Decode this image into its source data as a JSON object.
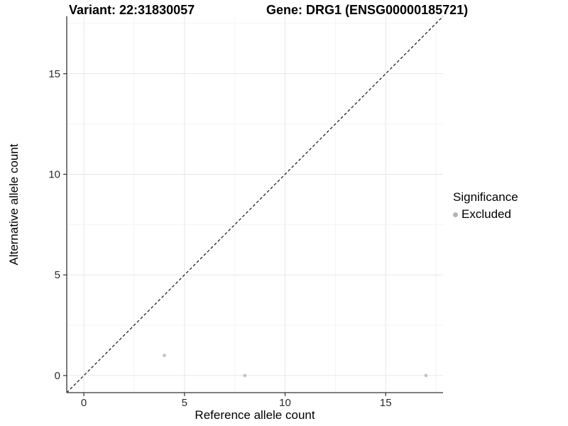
{
  "header": {
    "variant_title": "Variant: 22:31830057",
    "gene_title": "Gene: DRG1 (ENSG00000185721)"
  },
  "chart_data": {
    "type": "scatter",
    "title_left": "Variant: 22:31830057",
    "title_right": "Gene: DRG1 (ENSG00000185721)",
    "xlabel": "Reference allele count",
    "ylabel": "Alternative allele count",
    "xlim": [
      -0.85,
      17.85
    ],
    "ylim": [
      -0.85,
      17.85
    ],
    "x_major_ticks": [
      0,
      5,
      10,
      15
    ],
    "y_major_ticks": [
      0,
      5,
      10,
      15
    ],
    "x_minor_ticks": [
      2.5,
      7.5,
      12.5,
      17.5
    ],
    "y_minor_ticks": [
      2.5,
      7.5,
      12.5,
      17.5
    ],
    "grid": "major+minor",
    "reference_line": {
      "type": "identity",
      "style": "dashed",
      "color": "#111111"
    },
    "series": [
      {
        "name": "Excluded",
        "color": "#bfbfbf",
        "points": [
          [
            4,
            1
          ],
          [
            8,
            0
          ],
          [
            17,
            0
          ]
        ]
      }
    ],
    "legend": {
      "title": "Significance",
      "position": "right",
      "items": [
        {
          "label": "Excluded",
          "color": "#b5b5b5",
          "marker": "circle"
        }
      ]
    }
  },
  "colors": {
    "background": "#ffffff",
    "major_grid": "#e7e7e7",
    "minor_grid": "#f3f3f3",
    "axis_line": "#333333",
    "tick_mark": "#333333",
    "tick_text": "#2b2b2b",
    "title_text": "#000000"
  }
}
